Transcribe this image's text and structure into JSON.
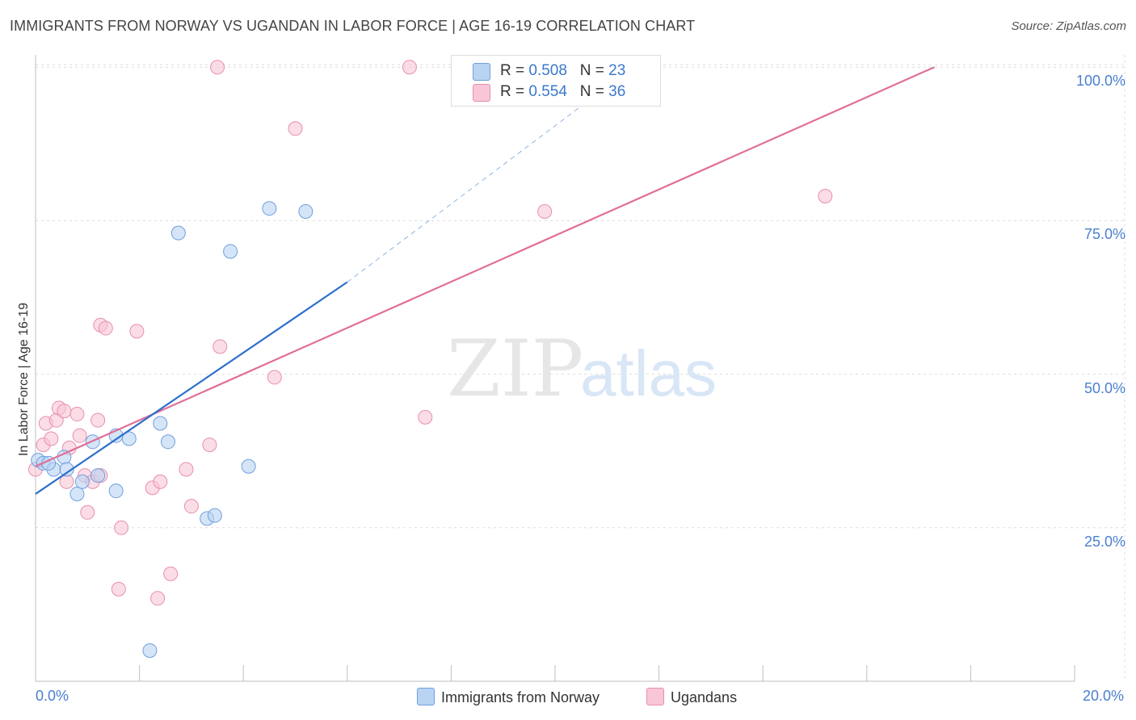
{
  "header": {
    "title": "IMMIGRANTS FROM NORWAY VS UGANDAN IN LABOR FORCE | AGE 16-19 CORRELATION CHART",
    "source": "Source: ZipAtlas.com"
  },
  "watermark": {
    "zip": "ZIP",
    "atlas": "atlas"
  },
  "legend_top": {
    "norway": {
      "r_label": "R = ",
      "r_value": "0.508",
      "n_label": "N = ",
      "n_value": "23"
    },
    "ugandans": {
      "r_label": "R = ",
      "r_value": "0.554",
      "n_label": "N = ",
      "n_value": "36"
    }
  },
  "legend_bottom": {
    "norway": "Immigrants from Norway",
    "ugandans": "Ugandans"
  },
  "colors": {
    "norway_fill": "#b9d3f3",
    "norway_stroke": "#6f9fdc",
    "norway_line": "#2d6fcc",
    "ugandans_fill": "#f8c6d6",
    "ugandans_stroke": "#e88fae",
    "ugandans_line": "#e06f97"
  },
  "chart_data": {
    "type": "scatter",
    "title": "IMMIGRANTS FROM NORWAY VS UGANDAN IN LABOR FORCE | AGE 16-19 CORRELATION CHART",
    "xlabel": "",
    "ylabel": "In Labor Force | Age 16-19",
    "xlim": [
      0,
      20
    ],
    "ylim": [
      0,
      102
    ],
    "x_tick_labels": [
      "0.0%",
      "20.0%"
    ],
    "y_ticks": [
      25,
      50,
      75,
      100
    ],
    "y_tick_labels": [
      "25.0%",
      "50.0%",
      "75.0%",
      "100.0%"
    ],
    "series": [
      {
        "name": "Immigrants from Norway",
        "R": 0.508,
        "N": 23,
        "points": [
          [
            0.05,
            36.0
          ],
          [
            0.15,
            35.5
          ],
          [
            0.35,
            34.5
          ],
          [
            0.55,
            36.5
          ],
          [
            0.8,
            30.5
          ],
          [
            0.9,
            32.5
          ],
          [
            1.1,
            39.0
          ],
          [
            1.2,
            33.5
          ],
          [
            1.55,
            31.0
          ],
          [
            1.55,
            40.0
          ],
          [
            1.8,
            39.5
          ],
          [
            2.2,
            5.0
          ],
          [
            2.4,
            42.0
          ],
          [
            2.55,
            39.0
          ],
          [
            2.75,
            73.0
          ],
          [
            3.3,
            26.5
          ],
          [
            3.45,
            27.0
          ],
          [
            3.75,
            70.0
          ],
          [
            4.1,
            35.0
          ],
          [
            4.5,
            77.0
          ],
          [
            5.2,
            76.5
          ],
          [
            0.6,
            34.5
          ],
          [
            0.25,
            35.5
          ]
        ],
        "trend": {
          "x": [
            0,
            6.0
          ],
          "y": [
            30.5,
            65.0
          ],
          "extension": {
            "x": [
              6.0,
              11.5
            ],
            "y": [
              65.0,
              100.0
            ]
          }
        }
      },
      {
        "name": "Ugandans",
        "R": 0.554,
        "N": 36,
        "points": [
          [
            0.0,
            34.5
          ],
          [
            0.15,
            38.5
          ],
          [
            0.2,
            42.0
          ],
          [
            0.3,
            39.5
          ],
          [
            0.4,
            42.5
          ],
          [
            0.45,
            44.5
          ],
          [
            0.55,
            44.0
          ],
          [
            0.6,
            32.5
          ],
          [
            0.65,
            38.0
          ],
          [
            0.8,
            43.5
          ],
          [
            0.85,
            40.0
          ],
          [
            0.95,
            33.5
          ],
          [
            1.0,
            27.5
          ],
          [
            1.1,
            32.5
          ],
          [
            1.25,
            33.5
          ],
          [
            1.2,
            42.5
          ],
          [
            1.25,
            58.0
          ],
          [
            1.35,
            57.5
          ],
          [
            1.6,
            15.0
          ],
          [
            1.65,
            25.0
          ],
          [
            1.95,
            57.0
          ],
          [
            2.25,
            31.5
          ],
          [
            2.4,
            32.5
          ],
          [
            2.35,
            13.5
          ],
          [
            2.6,
            17.5
          ],
          [
            2.9,
            34.5
          ],
          [
            3.0,
            28.5
          ],
          [
            3.35,
            38.5
          ],
          [
            3.55,
            54.5
          ],
          [
            4.6,
            49.5
          ],
          [
            3.5,
            100.0
          ],
          [
            7.2,
            100.0
          ],
          [
            5.0,
            90.0
          ],
          [
            7.5,
            43.0
          ],
          [
            9.8,
            76.5
          ],
          [
            15.2,
            79.0
          ]
        ],
        "trend": {
          "x": [
            0,
            17.3
          ],
          "y": [
            35.0,
            100.0
          ]
        }
      }
    ]
  }
}
